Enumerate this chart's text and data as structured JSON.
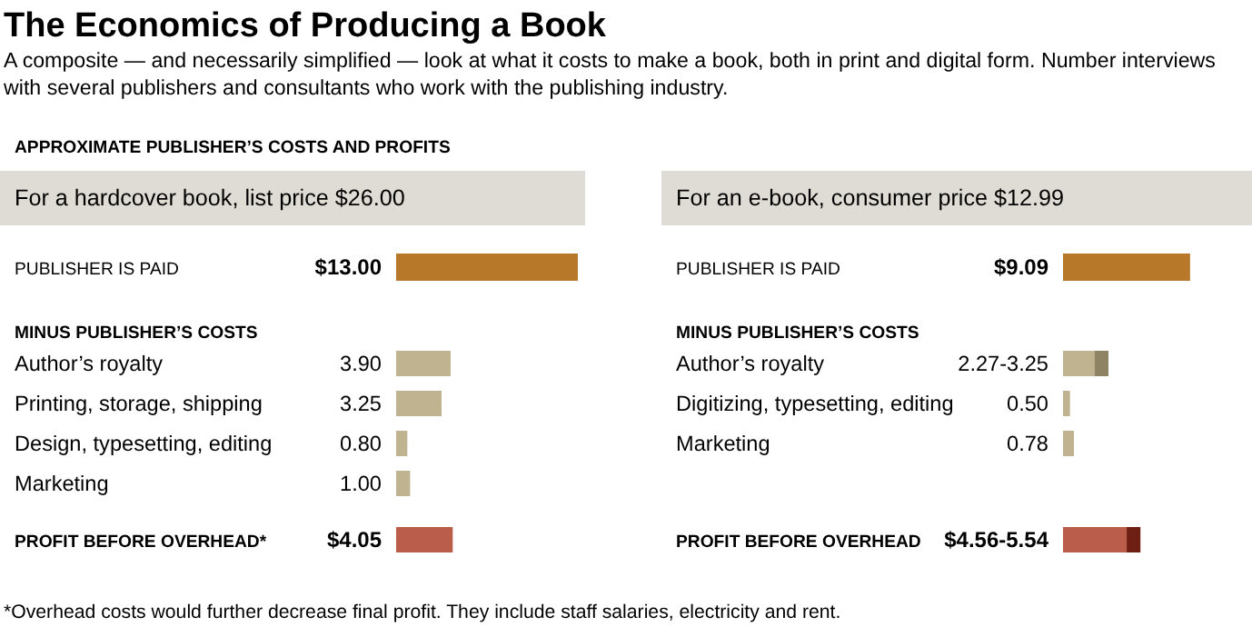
{
  "chart_data": [
    {
      "type": "other",
      "title": "The Economics of Producing a Book",
      "subtitle": "A composite — and necessarily simplified — look at what it costs to make a book, both in print and digital form. Number interviews with several publishers and consultants who work with the publishing industry.",
      "annotations": [
        "APPROXIMATE PUBLISHER’S COSTS AND PROFITS",
        "*Overhead costs would further decrease final profit. They include staff salaries, electricity and rent."
      ]
    },
    {
      "type": "bar",
      "orientation": "horizontal",
      "title": "For a hardcover book, list price $26.00",
      "categories": [
        "PUBLISHER IS PAID",
        "MINUS PUBLISHER’S COSTS",
        "Author’s royalty",
        "Printing, storage, shipping",
        "Design, typesetting, editing",
        "Marketing",
        "PROFIT BEFORE OVERHEAD*"
      ],
      "series": [
        {
          "values": [
            13.0,
            null,
            3.9,
            3.25,
            0.8,
            1.0,
            4.05
          ],
          "colors": [
            "#b7782a",
            null,
            "#bfb390",
            "#bfb390",
            "#bfb390",
            "#bfb390",
            "#ba5d4b"
          ],
          "value_labels": [
            "$13.00",
            null,
            "3.90",
            "3.25",
            "0.80",
            "1.00",
            "$4.05"
          ]
        }
      ]
    },
    {
      "type": "bar",
      "orientation": "horizontal",
      "title": "For an e-book, consumer price $12.99",
      "categories": [
        "PUBLISHER IS PAID",
        "MINUS PUBLISHER’S COSTS",
        "Author’s royalty",
        "Digitizing, typesetting, editing",
        "Marketing",
        "PROFIT BEFORE OVERHEAD"
      ],
      "series": [
        {
          "values": [
            9.09,
            null,
            2.27,
            0.5,
            0.78,
            4.56
          ],
          "colors": [
            "#b7782a",
            null,
            "#bfb390",
            "#bfb390",
            "#bfb390",
            "#ba5d4b"
          ],
          "value_labels": [
            "$9.09",
            null,
            "2.27-3.25",
            "0.50",
            "0.78",
            "$4.56-5.54"
          ]
        },
        {
          "values": [
            null,
            null,
            3.25,
            null,
            null,
            5.54
          ],
          "colors": [
            null,
            null,
            "#8e8464",
            null,
            null,
            "#6c1f12"
          ]
        }
      ]
    }
  ]
}
